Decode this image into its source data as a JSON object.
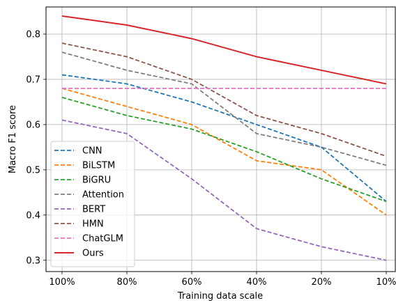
{
  "chart_data": {
    "type": "line",
    "categories": [
      "100%",
      "80%",
      "60%",
      "40%",
      "20%",
      "10%"
    ],
    "xlabel": "Training data scale",
    "ylabel": "Macro F1 score",
    "ylim": [
      0.275,
      0.86
    ],
    "yticks": [
      "0.3",
      "0.4",
      "0.5",
      "0.6",
      "0.7",
      "0.8"
    ],
    "grid": true,
    "legend_position": "lower-left",
    "series": [
      {
        "name": "CNN",
        "color": "#1f77b4",
        "style": "dashed",
        "values": [
          0.71,
          0.69,
          0.65,
          0.6,
          0.55,
          0.43
        ]
      },
      {
        "name": "BiLSTM",
        "color": "#ff7f0e",
        "style": "dashed",
        "values": [
          0.68,
          0.64,
          0.6,
          0.52,
          0.5,
          0.4
        ]
      },
      {
        "name": "BiGRU",
        "color": "#2ca02c",
        "style": "dashed",
        "values": [
          0.66,
          0.62,
          0.59,
          0.54,
          0.48,
          0.43
        ]
      },
      {
        "name": "Attention",
        "color": "#7f7f7f",
        "style": "dashed",
        "values": [
          0.76,
          0.72,
          0.69,
          0.58,
          0.55,
          0.51
        ]
      },
      {
        "name": "BERT",
        "color": "#9467bd",
        "style": "dashed",
        "values": [
          0.61,
          0.58,
          0.48,
          0.37,
          0.33,
          0.3
        ]
      },
      {
        "name": "HMN",
        "color": "#8c564b",
        "style": "dashed",
        "values": [
          0.78,
          0.75,
          0.7,
          0.62,
          0.58,
          0.53
        ]
      },
      {
        "name": "ChatGLM",
        "color": "#e377c2",
        "style": "dashed",
        "values": [
          0.68,
          0.68,
          0.68,
          0.68,
          0.68,
          0.68
        ]
      },
      {
        "name": "Ours",
        "color": "#d62728",
        "style": "solid",
        "values": [
          0.84,
          0.82,
          0.79,
          0.75,
          0.72,
          0.69
        ]
      }
    ]
  }
}
